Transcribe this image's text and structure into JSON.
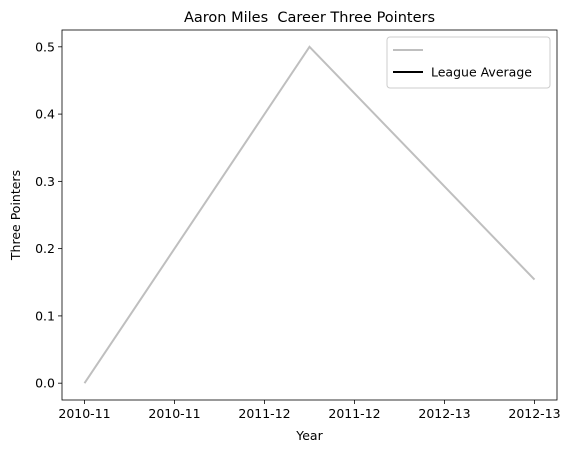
{
  "chart_data": {
    "type": "line",
    "title": "Aaron Miles  Career Three Pointers",
    "x_label": "Year",
    "y_label": "Three Pointers",
    "x": [
      0,
      1,
      2
    ],
    "series": [
      {
        "color": "#bfbfbf",
        "values": [
          0.0,
          0.5,
          0.154
        ]
      },
      {
        "name": "League Average",
        "color": "#000000",
        "values": [
          null,
          null,
          null
        ]
      }
    ],
    "xlim": [
      -0.1,
      2.1
    ],
    "xticks": [
      {
        "value": 0,
        "label": "2010-11"
      },
      {
        "value": 0.4,
        "label": "2010-11"
      },
      {
        "value": 0.8,
        "label": "2011-12"
      },
      {
        "value": 1.2,
        "label": "2011-12"
      },
      {
        "value": 1.6,
        "label": "2012-13"
      },
      {
        "value": 2.0,
        "label": "2012-13"
      }
    ],
    "ylim": [
      -0.025,
      0.525
    ],
    "yticks": [
      {
        "value": 0,
        "label": "0.0"
      },
      {
        "value": 0.1,
        "label": "0.1"
      },
      {
        "value": 0.2,
        "label": "0.2"
      },
      {
        "value": 0.3,
        "label": "0.3"
      },
      {
        "value": 0.4,
        "label": "0.4"
      },
      {
        "value": 0.5,
        "label": "0.5"
      }
    ],
    "grid": false,
    "legend": "upper right"
  }
}
